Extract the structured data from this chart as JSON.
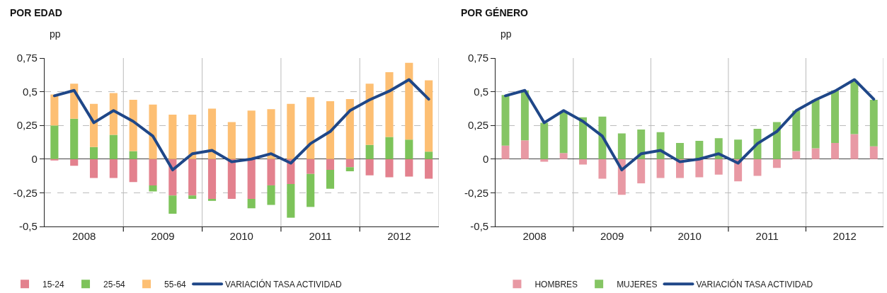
{
  "chart_data": [
    {
      "type": "bar",
      "title": "POR EDAD",
      "ylabel": "pp",
      "stacked": true,
      "x": [
        2008.125,
        2008.375,
        2008.625,
        2008.875,
        2009.125,
        2009.375,
        2009.625,
        2009.875,
        2010.125,
        2010.375,
        2010.625,
        2010.875,
        2011.125,
        2011.375,
        2011.625,
        2011.875,
        2012.125,
        2012.375,
        2012.625,
        2012.875
      ],
      "series": [
        {
          "name": "15-24",
          "color": "#e3818e",
          "values": [
            -0.01,
            -0.05,
            -0.14,
            -0.14,
            -0.17,
            -0.195,
            -0.27,
            -0.27,
            -0.295,
            -0.295,
            -0.295,
            -0.195,
            -0.185,
            -0.11,
            -0.08,
            -0.06,
            -0.12,
            -0.135,
            -0.13,
            -0.145
          ]
        },
        {
          "name": "25-54",
          "color": "#7dc35a",
          "values": [
            0.25,
            0.3,
            0.09,
            0.18,
            0.06,
            -0.045,
            -0.135,
            -0.025,
            -0.015,
            0.0,
            -0.07,
            -0.145,
            -0.25,
            -0.245,
            -0.14,
            -0.03,
            0.105,
            0.165,
            0.145,
            0.055
          ]
        },
        {
          "name": "55-64",
          "color": "#fdbf73",
          "values": [
            0.23,
            0.26,
            0.32,
            0.31,
            0.38,
            0.405,
            0.33,
            0.33,
            0.375,
            0.275,
            0.36,
            0.37,
            0.41,
            0.46,
            0.43,
            0.445,
            0.455,
            0.48,
            0.57,
            0.53
          ]
        },
        {
          "name": "VARIACIÓN TASA ACTIVIDAD",
          "type": "line",
          "color": "#1f4788",
          "values": [
            0.47,
            0.51,
            0.27,
            0.36,
            0.28,
            0.17,
            -0.08,
            0.04,
            0.065,
            -0.02,
            0.0,
            0.04,
            -0.03,
            0.115,
            0.205,
            0.36,
            0.44,
            0.505,
            0.59,
            0.445
          ]
        }
      ],
      "xlim": [
        2008,
        2013
      ],
      "xticks": [
        {
          "value": 2008.5,
          "label": "2008"
        },
        {
          "value": 2009,
          "label": null
        },
        {
          "value": 2009.5,
          "label": "2009"
        },
        {
          "value": 2010,
          "label": null
        },
        {
          "value": 2010.5,
          "label": "2010"
        },
        {
          "value": 2011,
          "label": null
        },
        {
          "value": 2011.5,
          "label": "2011"
        },
        {
          "value": 2012,
          "label": null
        },
        {
          "value": 2012.5,
          "label": "2012"
        }
      ],
      "ylim": [
        -0.5,
        0.75
      ],
      "yticks": [
        {
          "value": -0.5,
          "label": "-0,5"
        },
        {
          "value": -0.25,
          "label": "-0,25"
        },
        0,
        {
          "value": 0.25,
          "label": "0,25"
        },
        {
          "value": 0.5,
          "label": "0,5"
        },
        {
          "value": 0.75,
          "label": "0,75"
        }
      ],
      "grid": true,
      "legend": "bottom"
    },
    {
      "type": "bar",
      "title": "POR GÉNERO",
      "ylabel": "pp",
      "stacked": true,
      "x": [
        2008.125,
        2008.375,
        2008.625,
        2008.875,
        2009.125,
        2009.375,
        2009.625,
        2009.875,
        2010.125,
        2010.375,
        2010.625,
        2010.875,
        2011.125,
        2011.375,
        2011.625,
        2011.875,
        2012.125,
        2012.375,
        2012.625,
        2012.875
      ],
      "series": [
        {
          "name": "HOMBRES",
          "color": "#e899a4",
          "values": [
            0.1,
            0.14,
            -0.02,
            0.045,
            -0.04,
            -0.145,
            -0.265,
            -0.18,
            -0.14,
            -0.14,
            -0.135,
            -0.115,
            -0.165,
            -0.125,
            -0.065,
            0.06,
            0.08,
            0.12,
            0.185,
            0.095
          ]
        },
        {
          "name": "MUJERES",
          "color": "#85c564",
          "values": [
            0.375,
            0.37,
            0.27,
            0.305,
            0.31,
            0.315,
            0.19,
            0.22,
            0.2,
            0.12,
            0.135,
            0.155,
            0.145,
            0.225,
            0.275,
            0.3,
            0.36,
            0.39,
            0.395,
            0.345
          ]
        },
        {
          "name": "VARIACIÓN TASA ACTIVIDAD",
          "type": "line",
          "color": "#1f4788",
          "values": [
            0.47,
            0.51,
            0.27,
            0.36,
            0.28,
            0.17,
            -0.08,
            0.04,
            0.065,
            -0.02,
            0.0,
            0.04,
            -0.03,
            0.115,
            0.205,
            0.36,
            0.44,
            0.505,
            0.59,
            0.445
          ]
        }
      ],
      "xlim": [
        2008,
        2013
      ],
      "xticks": [
        {
          "value": 2008.5,
          "label": "2008"
        },
        {
          "value": 2009,
          "label": null
        },
        {
          "value": 2009.5,
          "label": "2009"
        },
        {
          "value": 2010,
          "label": null
        },
        {
          "value": 2010.5,
          "label": "2010"
        },
        {
          "value": 2011,
          "label": null
        },
        {
          "value": 2011.5,
          "label": "2011"
        },
        {
          "value": 2012,
          "label": null
        },
        {
          "value": 2012.5,
          "label": "2012"
        }
      ],
      "ylim": [
        -0.5,
        0.75
      ],
      "yticks": [
        {
          "value": -0.5,
          "label": "-0,5"
        },
        {
          "value": -0.25,
          "label": "-0,25"
        },
        0,
        {
          "value": 0.25,
          "label": "0,25"
        },
        {
          "value": 0.5,
          "label": "0,5"
        },
        {
          "value": 0.75,
          "label": "0,75"
        }
      ],
      "grid": true,
      "legend": "bottom"
    }
  ]
}
